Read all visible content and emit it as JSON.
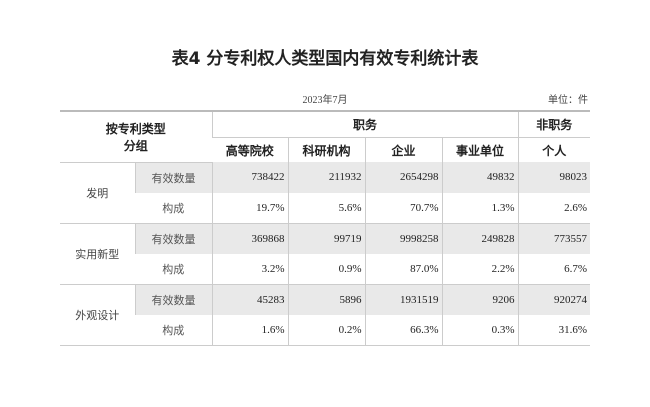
{
  "title": "表4 分专利权人类型国内有效专利统计表",
  "date": "2023年7月",
  "unit": "单位：件",
  "header": {
    "group": "按专利类型\n分组",
    "group_l1": "按专利类型",
    "group_l2": "分组",
    "service": "职务",
    "non_service": "非职务",
    "columns": [
      "高等院校",
      "科研机构",
      "企业",
      "事业单位",
      "个人"
    ]
  },
  "rows": [
    {
      "group": "发明",
      "count_label": "有效数量",
      "count": [
        "738422",
        "211932",
        "2654298",
        "49832",
        "98023"
      ],
      "share_label": "构成",
      "share": [
        "19.7%",
        "5.6%",
        "70.7%",
        "1.3%",
        "2.6%"
      ]
    },
    {
      "group": "实用新型",
      "count_label": "有效数量",
      "count": [
        "369868",
        "99719",
        "9998258",
        "249828",
        "773557"
      ],
      "share_label": "构成",
      "share": [
        "3.2%",
        "0.9%",
        "87.0%",
        "2.2%",
        "6.7%"
      ]
    },
    {
      "group": "外观设计",
      "count_label": "有效数量",
      "count": [
        "45283",
        "5896",
        "1931519",
        "9206",
        "920274"
      ],
      "share_label": "构成",
      "share": [
        "1.6%",
        "0.2%",
        "66.3%",
        "0.3%",
        "31.6%"
      ]
    }
  ]
}
